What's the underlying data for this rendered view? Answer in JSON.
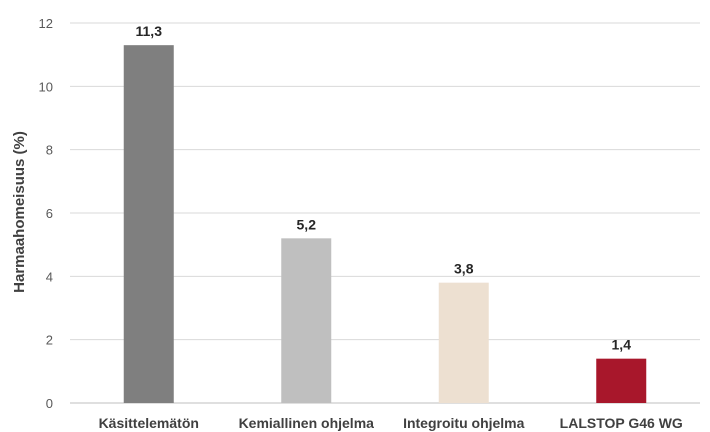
{
  "chart_data": {
    "type": "bar",
    "categories": [
      "Käsittelemätön",
      "Kemiallinen ohjelma",
      "Integroitu ohjelma",
      "LALSTOP G46 WG"
    ],
    "values": [
      11.3,
      5.2,
      3.8,
      1.4
    ],
    "data_labels": [
      "11,3",
      "5,2",
      "3,8",
      "1,4"
    ],
    "bar_colors": [
      "#7f7f7f",
      "#bfbfbf",
      "#ede0d1",
      "#a8172b"
    ],
    "title": "",
    "xlabel": "",
    "ylabel": "Harmaahomeisuus (%)",
    "ylim": [
      0,
      12
    ],
    "yticks": [
      0,
      2,
      4,
      6,
      8,
      10,
      12
    ],
    "grid": true,
    "legend": "none"
  }
}
